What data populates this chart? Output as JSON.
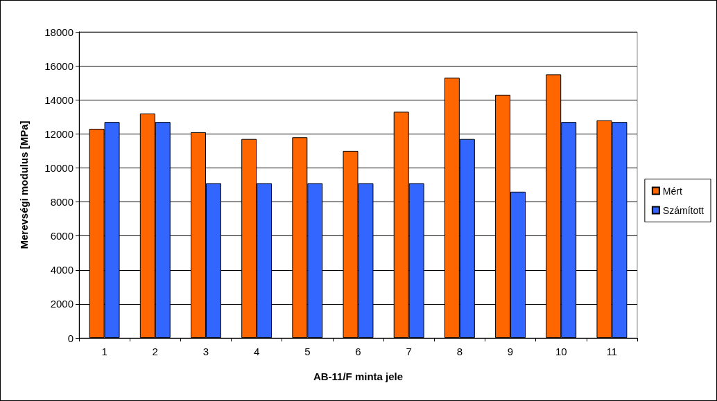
{
  "chart_data": {
    "type": "bar",
    "xlabel": "AB-11/F minta jele",
    "ylabel": "Merevségi modulus [MPa]",
    "categories": [
      "1",
      "2",
      "3",
      "4",
      "5",
      "6",
      "7",
      "8",
      "9",
      "10",
      "11"
    ],
    "series": [
      {
        "name": "Mért",
        "color": "#ff6600",
        "values": [
          12300,
          13200,
          12100,
          11700,
          11800,
          11000,
          13300,
          15300,
          14300,
          15500,
          12800
        ]
      },
      {
        "name": "Számított",
        "color": "#3366ff",
        "values": [
          12700,
          12700,
          9100,
          9100,
          9100,
          9100,
          9100,
          11700,
          8600,
          12700,
          12700
        ]
      }
    ],
    "ylim": [
      0,
      18000
    ],
    "yticks": [
      0,
      2000,
      4000,
      6000,
      8000,
      10000,
      12000,
      14000,
      16000,
      18000
    ],
    "grid": "y",
    "legend": "right"
  }
}
